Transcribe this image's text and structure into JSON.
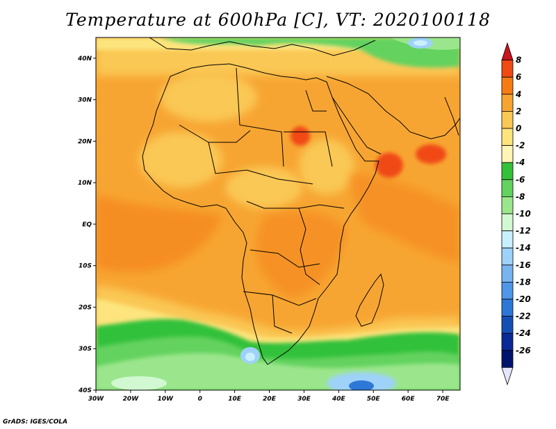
{
  "title": "Temperature at 600hPa [C], VT: 2020100118",
  "credit": "GrADS: IGES/COLA",
  "map": {
    "variable": "Temperature at 600hPa",
    "units": "C",
    "valid_time": "2020100118",
    "region": "Africa",
    "lon_range": [
      -30,
      75
    ],
    "lat_range": [
      -40,
      45
    ],
    "x_tick_labels": [
      "30W",
      "20W",
      "10W",
      "0",
      "10E",
      "20E",
      "30E",
      "40E",
      "50E",
      "60E",
      "70E"
    ],
    "y_tick_labels": [
      "40N",
      "30N",
      "20N",
      "10N",
      "EQ",
      "10S",
      "20S",
      "30S",
      "40S"
    ]
  },
  "colorbar": {
    "labels": [
      "8",
      "6",
      "4",
      "2",
      "0",
      "-2",
      "-4",
      "-6",
      "-8",
      "-10",
      "-12",
      "-14",
      "-16",
      "-18",
      "-20",
      "-22",
      "-24",
      "-26"
    ],
    "colors": [
      "#c8141e",
      "#f04a14",
      "#f57c14",
      "#f7a532",
      "#fac855",
      "#fde47d",
      "#fff5b4",
      "#33c13a",
      "#64d25e",
      "#9be68c",
      "#d2f8d2",
      "#c8f0ff",
      "#9ed2f8",
      "#78b4f0",
      "#5096e6",
      "#2d78d7",
      "#1450b4",
      "#0a2896",
      "#00146e",
      "#e6e6ff"
    ]
  }
}
